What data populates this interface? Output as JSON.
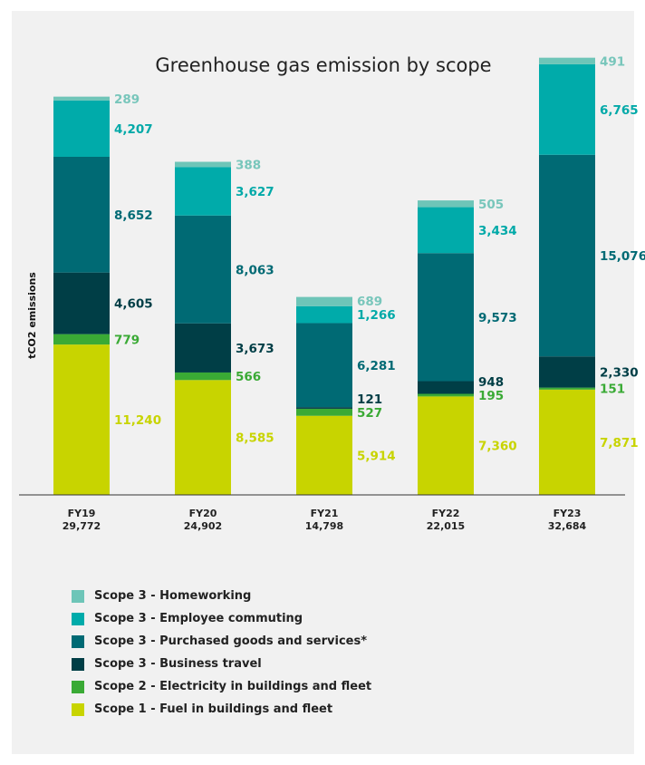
{
  "chart_data": {
    "type": "bar",
    "stacked": true,
    "title": "Greenhouse gas emission by scope",
    "ylabel": "tCO2 emissions",
    "xlabel": "",
    "ylim": [
      0,
      33000
    ],
    "grid": false,
    "legend_position": "bottom",
    "categories": [
      "FY19",
      "FY20",
      "FY21",
      "FY22",
      "FY23"
    ],
    "totals": [
      "29,772",
      "24,902",
      "14,798",
      "22,015",
      "32,684"
    ],
    "series": [
      {
        "name": "Scope 1 - Fuel in buildings and fleet",
        "color": "#c8d400",
        "label_color": "#c8d400",
        "values": [
          11240,
          8585,
          5914,
          7360,
          7871
        ]
      },
      {
        "name": "Scope 2 - Electricity in buildings and fleet",
        "color": "#3aaa35",
        "label_color": "#3aaa35",
        "values": [
          779,
          566,
          527,
          195,
          151
        ]
      },
      {
        "name": "Scope 3 - Business travel",
        "color": "#003e46",
        "label_color": "#003e46",
        "values": [
          4605,
          3673,
          121,
          948,
          2330
        ]
      },
      {
        "name": "Scope 3 - Purchased goods and services*",
        "color": "#006a74",
        "label_color": "#006a74",
        "values": [
          8652,
          8063,
          6281,
          9573,
          15076
        ]
      },
      {
        "name": "Scope 3 - Employee commuting",
        "color": "#00abaa",
        "label_color": "#00a9a8",
        "values": [
          4207,
          3627,
          1266,
          3434,
          6765
        ]
      },
      {
        "name": "Scope 3 - Homeworking",
        "color": "#6ec5b8",
        "label_color": "#78c6bb",
        "values": [
          289,
          388,
          689,
          505,
          491
        ]
      }
    ],
    "legend_order": [
      5,
      4,
      3,
      2,
      1,
      0
    ]
  }
}
